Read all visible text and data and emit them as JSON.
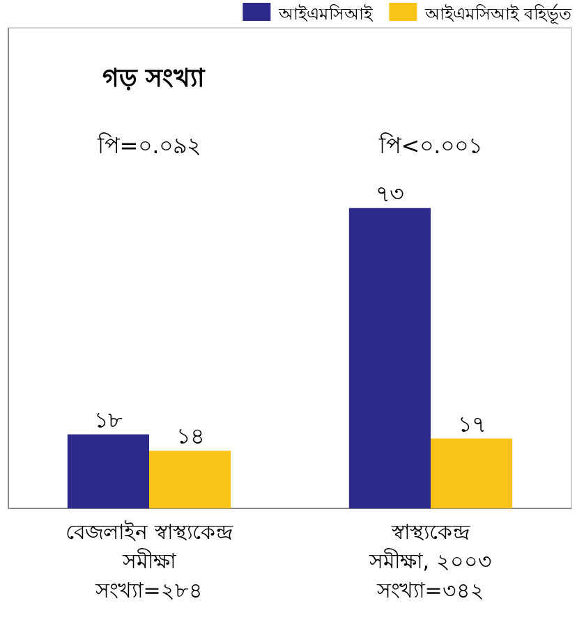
{
  "chart_data": {
    "type": "bar",
    "title": "গড় সংখ্যা",
    "categories": [
      "বেজলাইন স্বাস্থ্যকেন্দ্র\nসমীক্ষা\nসংখ্যা=২৮৪",
      "স্বাস্থ্যকেন্দ্র\nসমীক্ষা, ২০০৩\nসংখ্যা=৩৪২"
    ],
    "series": [
      {
        "name": "আইএমসিআই",
        "color": "#2e2a8c",
        "values": [
          18,
          73
        ],
        "value_labels": [
          "১৮",
          "৭৩"
        ]
      },
      {
        "name": "আইএমসিআই বহির্ভূত",
        "color": "#f8c41a",
        "values": [
          14,
          17
        ],
        "value_labels": [
          "১৪",
          "১৭"
        ]
      }
    ],
    "annotations": [
      "পি=০.০৯২",
      "পি<০.০০১"
    ],
    "legend": "top right"
  }
}
